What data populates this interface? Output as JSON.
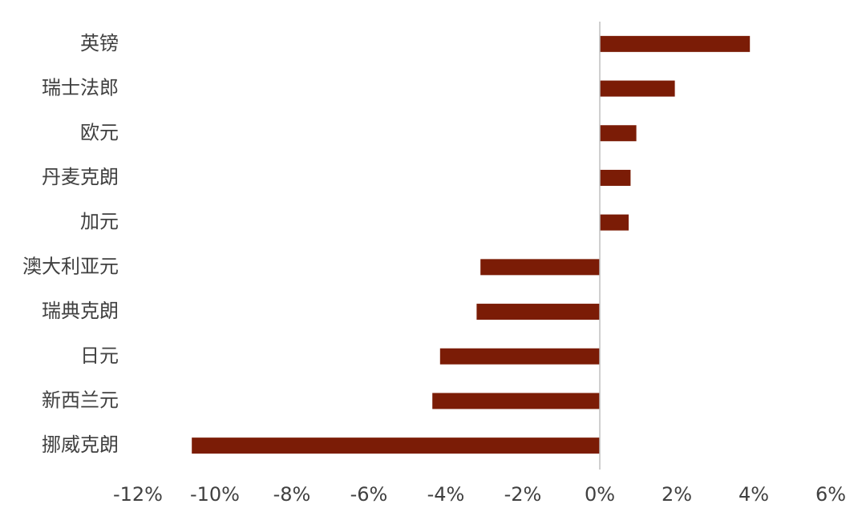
{
  "chart_data": {
    "type": "bar",
    "orientation": "horizontal",
    "categories": [
      "英镑",
      "瑞士法郎",
      "欧元",
      "丹麦克朗",
      "加元",
      "澳大利亚元",
      "瑞典克朗",
      "日元",
      "新西兰元",
      "挪威克朗"
    ],
    "values": [
      3.9,
      1.95,
      0.95,
      0.8,
      0.75,
      -3.1,
      -3.2,
      -4.15,
      -4.35,
      -10.6
    ],
    "color": "#7b1c06",
    "xlim": [
      -12,
      6
    ],
    "xticks": [
      {
        "value": -12,
        "label": "-12%"
      },
      {
        "value": -10,
        "label": "-10%"
      },
      {
        "value": -8,
        "label": "-8%"
      },
      {
        "value": -6,
        "label": "-6%"
      },
      {
        "value": -4,
        "label": "-4%"
      },
      {
        "value": -2,
        "label": "-2%"
      },
      {
        "value": 0,
        "label": "0%"
      },
      {
        "value": 2,
        "label": "2%"
      },
      {
        "value": 4,
        "label": "4%"
      },
      {
        "value": 6,
        "label": "6%"
      }
    ],
    "grid": false
  }
}
